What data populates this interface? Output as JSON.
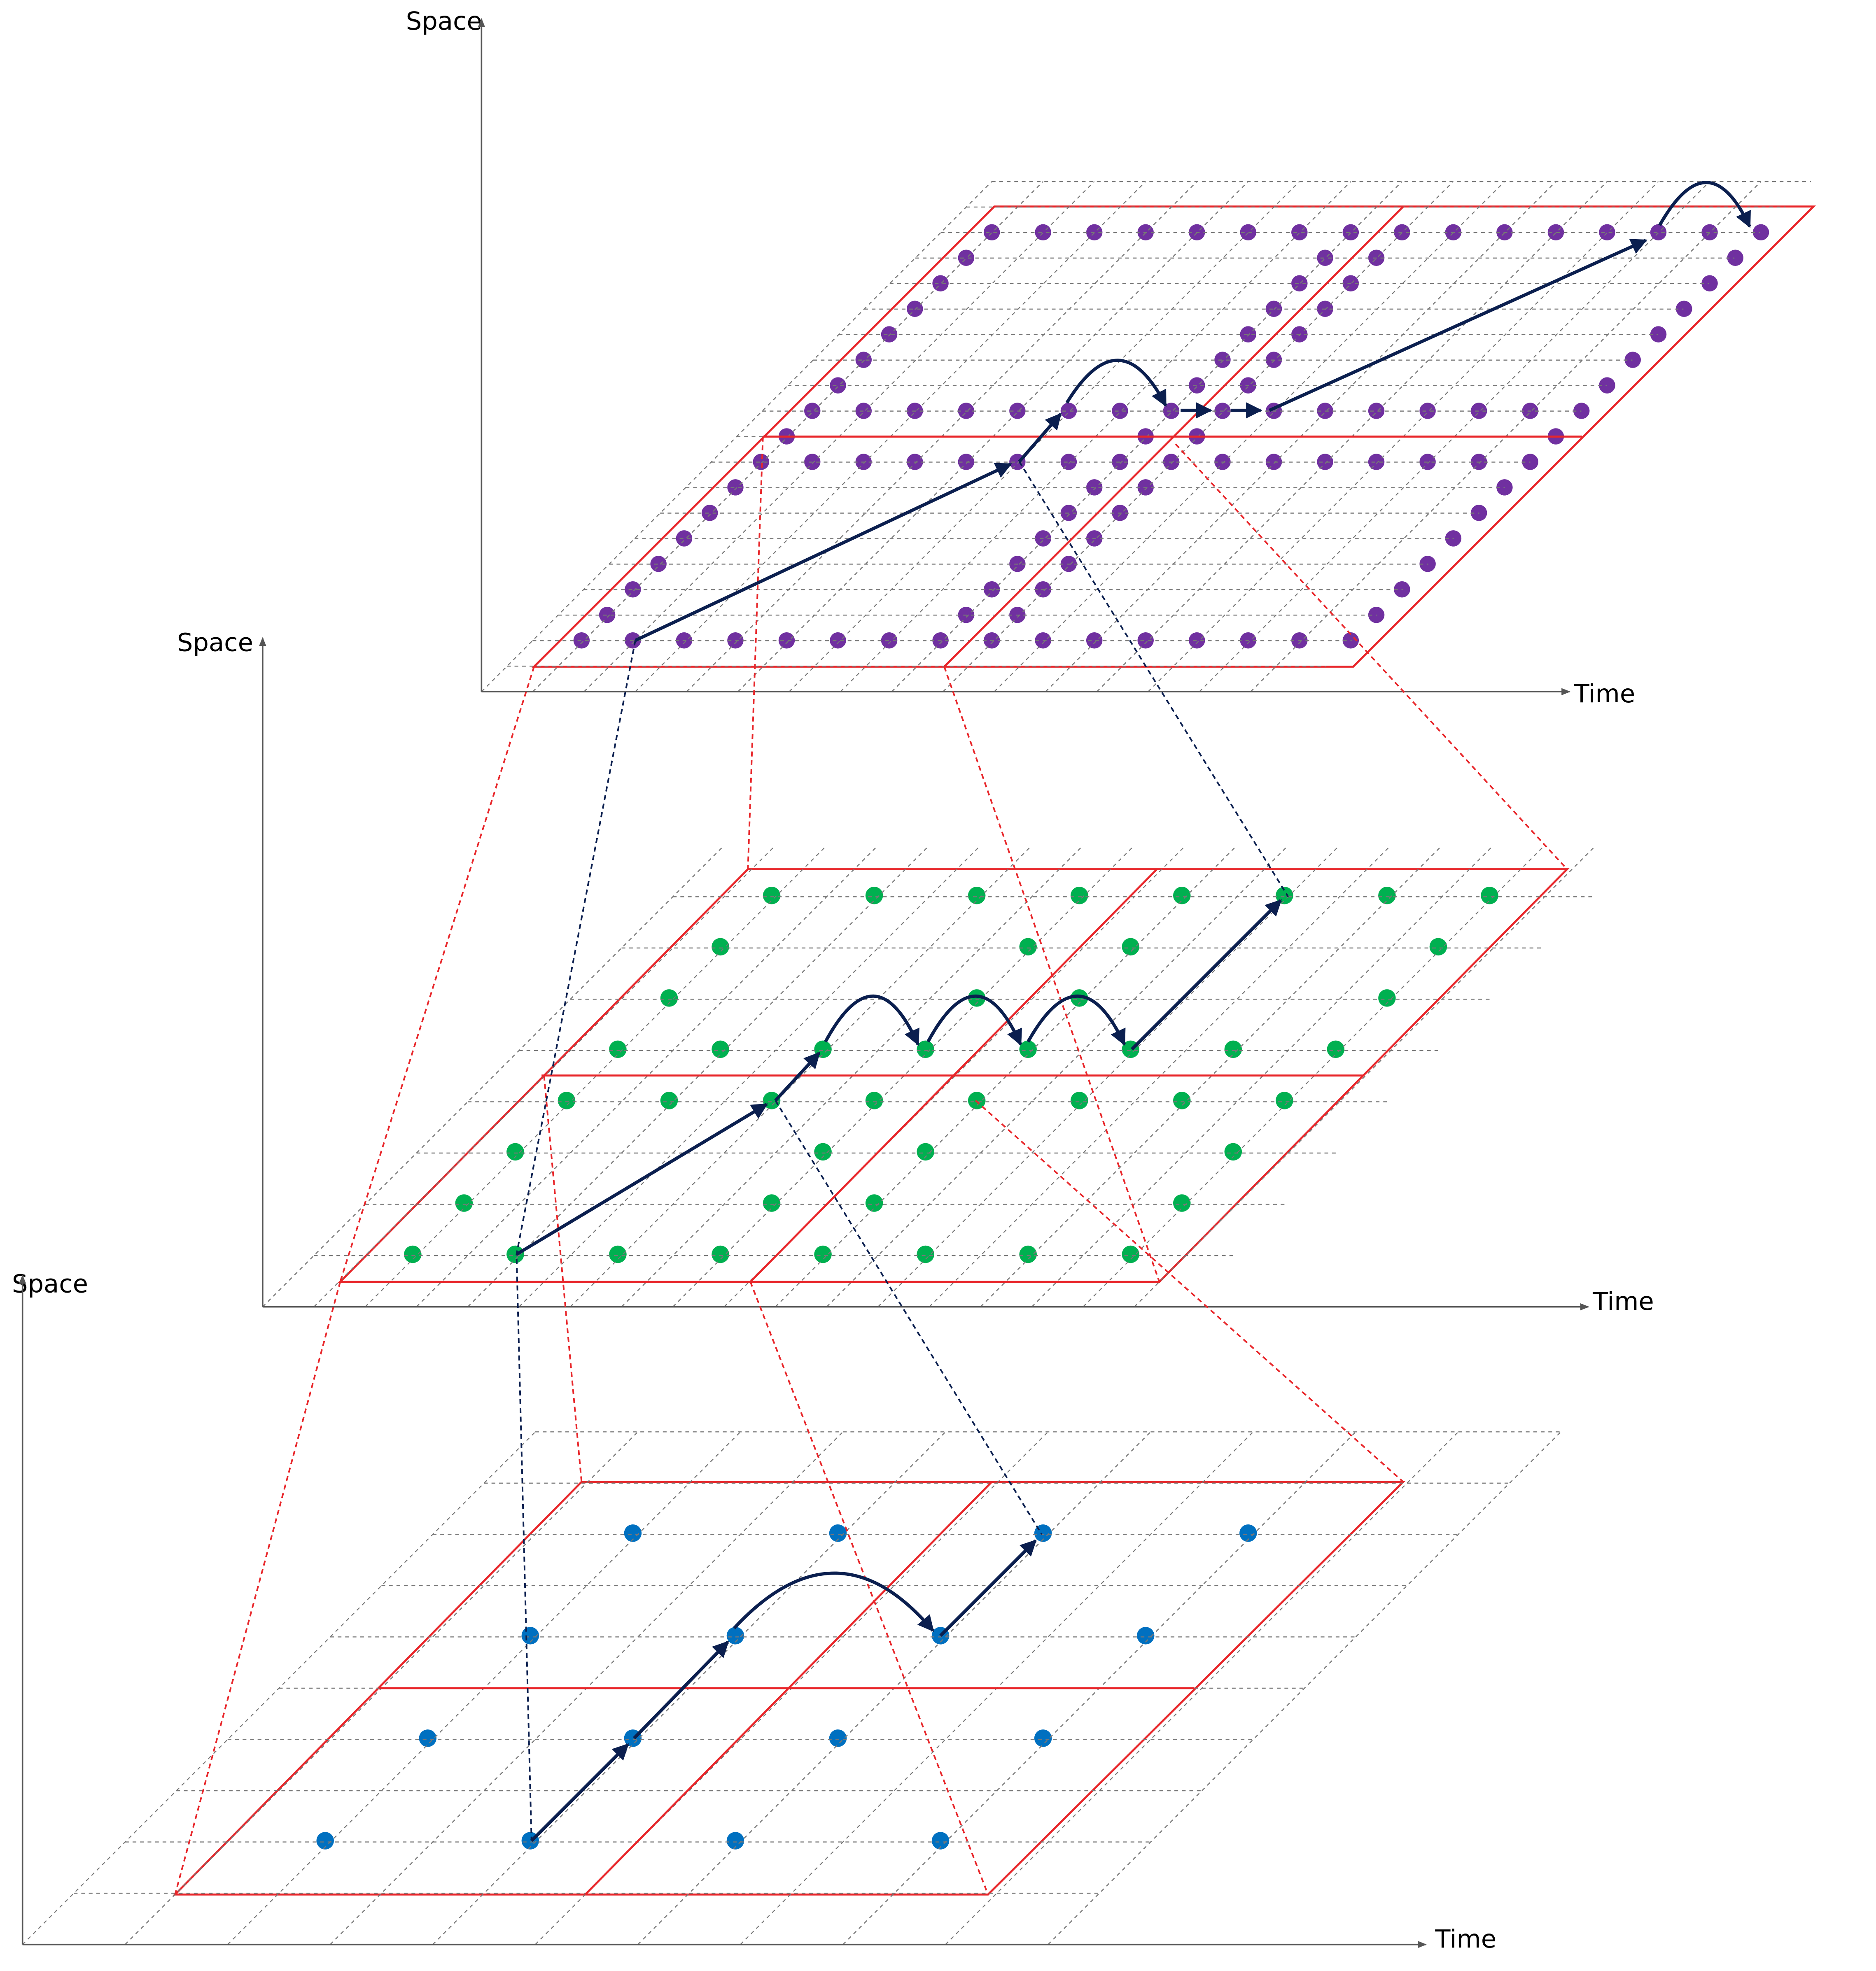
{
  "panels": [
    {
      "space_label": "Space",
      "time_label": "Time"
    },
    {
      "space_label": "Space",
      "time_label": "Time"
    },
    {
      "space_label": "Space",
      "time_label": "Time"
    }
  ]
}
